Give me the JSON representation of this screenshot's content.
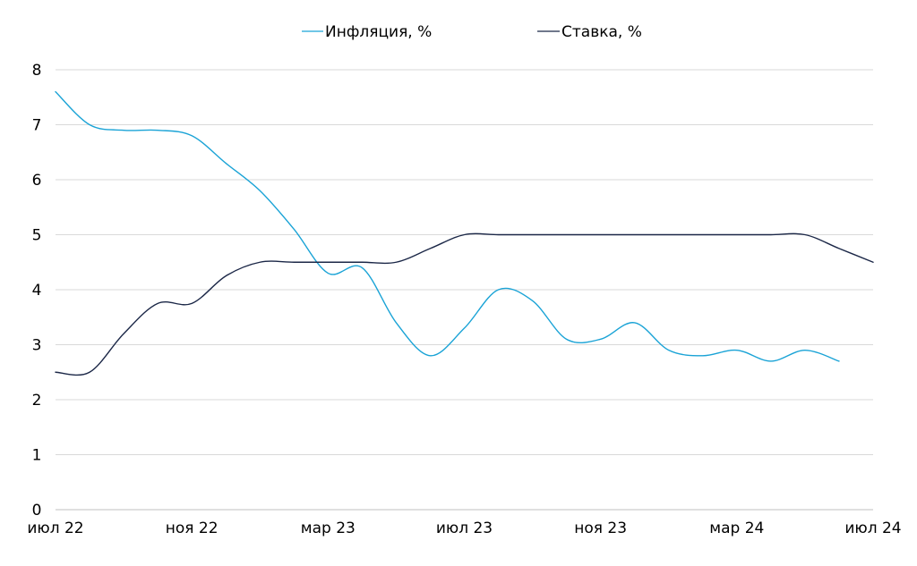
{
  "chart_data": {
    "type": "line",
    "title": "",
    "xlabel": "",
    "ylabel": "",
    "ylim": [
      0,
      8
    ],
    "y_ticks": [
      "0",
      "1",
      "2",
      "3",
      "4",
      "5",
      "6",
      "7",
      "8"
    ],
    "x_tick_labels": [
      "июл 22",
      "ноя 22",
      "мар 23",
      "июл 23",
      "ноя 23",
      "мар 24",
      "июл 24"
    ],
    "x": [
      "июл 22",
      "авг 22",
      "сен 22",
      "окт 22",
      "ноя 22",
      "дек 22",
      "янв 23",
      "фев 23",
      "мар 23",
      "апр 23",
      "май 23",
      "июн 23",
      "июл 23",
      "авг 23",
      "сен 23",
      "окт 23",
      "ноя 23",
      "дек 23",
      "янв 24",
      "фев 24",
      "мар 24",
      "апр 24",
      "май 24",
      "июн 24",
      "июл 24"
    ],
    "grid": true,
    "legend_position": "top",
    "series": [
      {
        "name": "Инфляция, %",
        "color": "#1aa3d6",
        "values": [
          7.6,
          7.0,
          6.9,
          6.9,
          6.8,
          6.3,
          5.8,
          5.1,
          4.3,
          4.4,
          3.4,
          2.8,
          3.3,
          4.0,
          3.8,
          3.1,
          3.1,
          3.4,
          2.9,
          2.8,
          2.9,
          2.7,
          2.9,
          2.7,
          null
        ]
      },
      {
        "name": "Ставка, %",
        "color": "#1b2747",
        "values": [
          2.5,
          2.5,
          3.2,
          3.75,
          3.75,
          4.25,
          4.5,
          4.5,
          4.5,
          4.5,
          4.5,
          4.75,
          5.0,
          5.0,
          5.0,
          5.0,
          5.0,
          5.0,
          5.0,
          5.0,
          5.0,
          5.0,
          5.0,
          4.75,
          4.5
        ]
      }
    ]
  }
}
